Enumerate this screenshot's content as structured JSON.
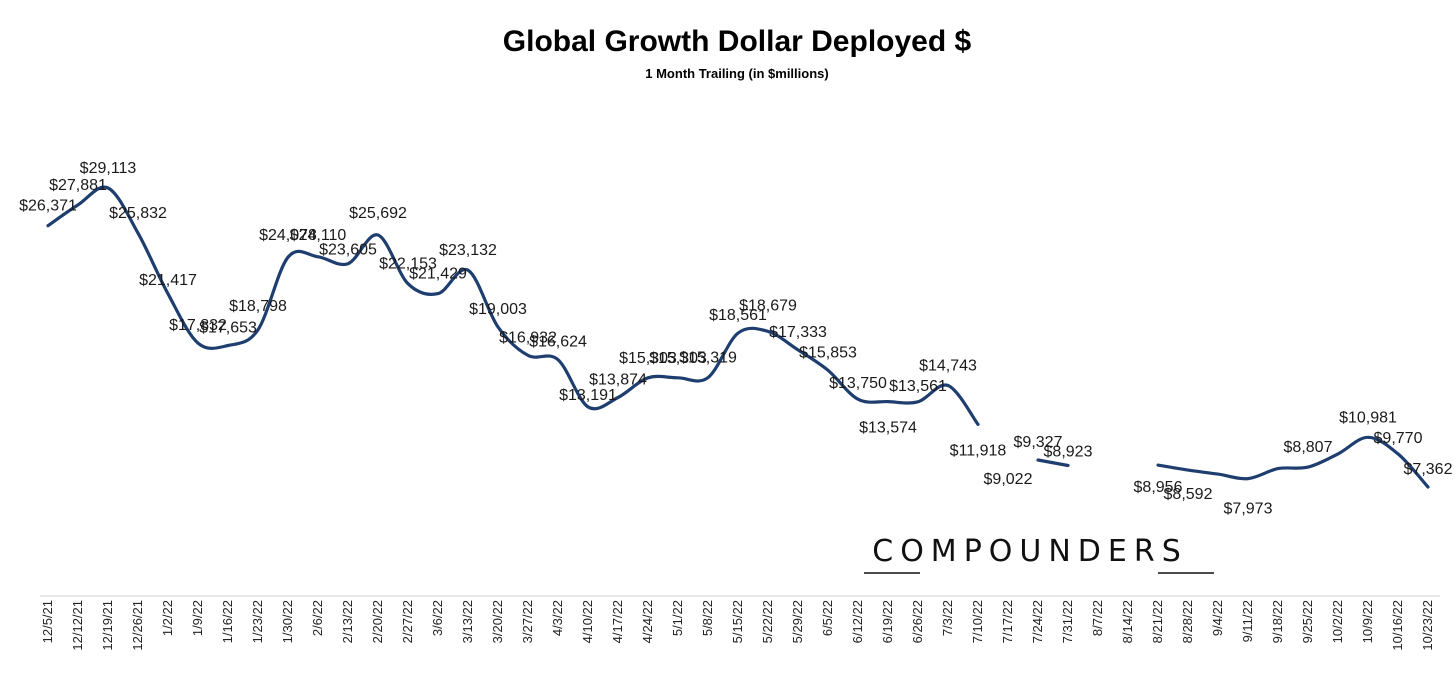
{
  "chart_data": {
    "type": "line",
    "title": "Global Growth Dollar Deployed $",
    "subtitle": "1 Month Trailing (in $millions)",
    "xlabel": "",
    "ylabel": "",
    "ylim": [
      5000,
      30000
    ],
    "grid": false,
    "legend": "none",
    "line_color": "#1f3e70",
    "watermark": "COMPOUNDERS",
    "categories": [
      "12/5/21",
      "12/12/21",
      "12/19/21",
      "12/26/21",
      "1/2/22",
      "1/9/22",
      "1/16/22",
      "1/23/22",
      "1/30/22",
      "2/6/22",
      "2/13/22",
      "2/20/22",
      "2/27/22",
      "3/6/22",
      "3/13/22",
      "3/20/22",
      "3/27/22",
      "4/3/22",
      "4/10/22",
      "4/17/22",
      "4/24/22",
      "5/1/22",
      "5/8/22",
      "5/15/22",
      "5/22/22",
      "5/29/22",
      "6/5/22",
      "6/12/22",
      "6/19/22",
      "6/26/22",
      "7/3/22",
      "7/10/22",
      "7/17/22",
      "7/24/22",
      "7/31/22",
      "8/7/22",
      "8/14/22",
      "8/21/22",
      "8/28/22",
      "9/4/22",
      "9/11/22",
      "9/18/22",
      "9/25/22",
      "10/2/22",
      "10/9/22",
      "10/16/22",
      "10/23/22"
    ],
    "series": [
      {
        "name": "Global Growth Dollar Deployed",
        "values": [
          26371,
          27881,
          29113,
          25832,
          21417,
          17832,
          17653,
          18798,
          24078,
          24110,
          23605,
          25692,
          22153,
          21429,
          23132,
          19003,
          16932,
          16624,
          13191,
          13874,
          15303,
          15303,
          15319,
          18561,
          18679,
          17333,
          15853,
          13750,
          13574,
          13561,
          14743,
          11918,
          null,
          9327,
          8923,
          null,
          null,
          8956,
          8592,
          8300,
          7973,
          8700,
          8807,
          9770,
          10981,
          9770,
          7362
        ],
        "labels": [
          "$26,371",
          "$27,881",
          "$29,113",
          "$25,832",
          "$21,417",
          "$17,832",
          "$17,653",
          "$18,798",
          "$24,078",
          "$24,110",
          "$23,605",
          "$25,692",
          "$22,153",
          "$21,429",
          "$23,132",
          "$19,003",
          "$16,932",
          "$16,624",
          "$13,191",
          "$13,874",
          "$15,303",
          "$15,303",
          "$15,319",
          "$18,561",
          "$18,679",
          "$17,333",
          "$15,853",
          "$13,750",
          "$13,574",
          "$13,561",
          "$14,743",
          "$11,918",
          "$9,022",
          "$9,327",
          "$8,923",
          "",
          "",
          "$8,956",
          "$8,592",
          "",
          "$7,973",
          "",
          "$8,807",
          "",
          "$10,981",
          "$9,770",
          "$7,362"
        ]
      }
    ]
  }
}
